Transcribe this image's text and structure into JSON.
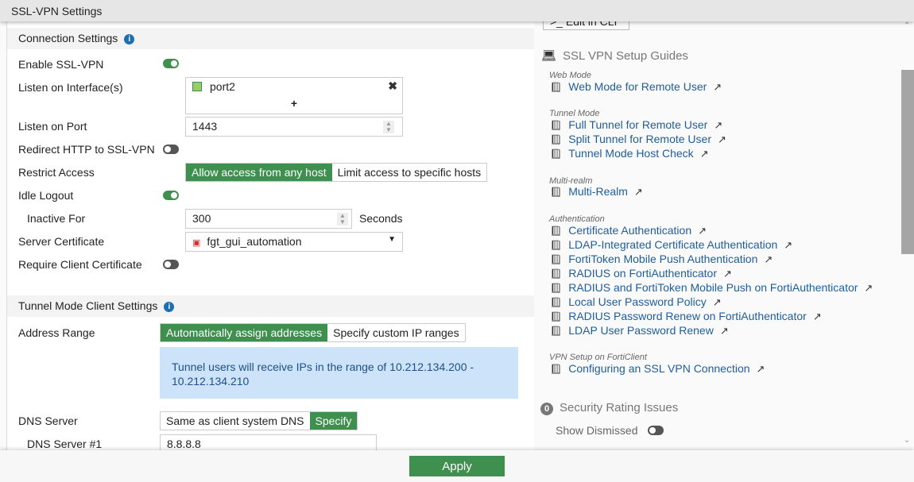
{
  "window": {
    "title": "SSL-VPN Settings"
  },
  "connection": {
    "title": "Connection Settings",
    "enable_label": "Enable SSL-VPN",
    "enable_on": true,
    "interfaces_label": "Listen on Interface(s)",
    "interface": "port2",
    "add": "+",
    "port_label": "Listen on Port",
    "port": "1443",
    "redirect_label": "Redirect HTTP to SSL-VPN",
    "redirect_on": false,
    "restrict_label": "Restrict Access",
    "restrict_options": [
      "Allow access from any host",
      "Limit access to specific hosts"
    ],
    "restrict_selected": "Allow access from any host",
    "idle_label": "Idle Logout",
    "idle_on": true,
    "inactive_label": "Inactive For",
    "inactive_value": "300",
    "inactive_unit": "Seconds",
    "cert_label": "Server Certificate",
    "cert": "fgt_gui_automation",
    "client_cert_label": "Require Client Certificate",
    "client_cert_on": false
  },
  "tunnel": {
    "title": "Tunnel Mode Client Settings",
    "address_label": "Address Range",
    "address_options": [
      "Automatically assign addresses",
      "Specify custom IP ranges"
    ],
    "address_selected": "Automatically assign addresses",
    "info_text": "Tunnel users will receive IPs in the range of 10.212.134.200 - 10.212.134.210",
    "dns_label": "DNS Server",
    "dns_options": [
      "Same as client system DNS",
      "Specify"
    ],
    "dns_selected": "Specify",
    "dns1_label": "DNS Server #1",
    "dns1": "8.8.8.8"
  },
  "sidebar": {
    "edit_cli": "Edit in CLI",
    "guides_title": "SSL VPN Setup Guides",
    "groups": [
      {
        "category": "Web Mode",
        "links": [
          "Web Mode for Remote User"
        ]
      },
      {
        "category": "Tunnel Mode",
        "links": [
          "Full Tunnel for Remote User",
          "Split Tunnel for Remote User",
          "Tunnel Mode Host Check"
        ]
      },
      {
        "category": "Multi-realm",
        "links": [
          "Multi-Realm"
        ]
      },
      {
        "category": "Authentication",
        "links": [
          "Certificate Authentication",
          "LDAP-Integrated Certificate Authentication",
          "FortiToken Mobile Push Authentication",
          "RADIUS on FortiAuthenticator",
          "RADIUS and FortiToken Mobile Push on FortiAuthenticator",
          "Local User Password Policy",
          "RADIUS Password Renew on FortiAuthenticator",
          "LDAP User Password Renew"
        ]
      },
      {
        "category": "VPN Setup on FortiClient",
        "links": [
          "Configuring an SSL VPN Connection"
        ]
      }
    ],
    "security_count": "0",
    "security_title": "Security Rating Issues",
    "show_dismissed": "Show Dismissed",
    "show_dismissed_on": false
  },
  "footer": {
    "apply": "Apply"
  },
  "colors": {
    "accent": "#3f8f4f",
    "link": "#1e5d9c",
    "info_bg": "#cce3f9"
  }
}
